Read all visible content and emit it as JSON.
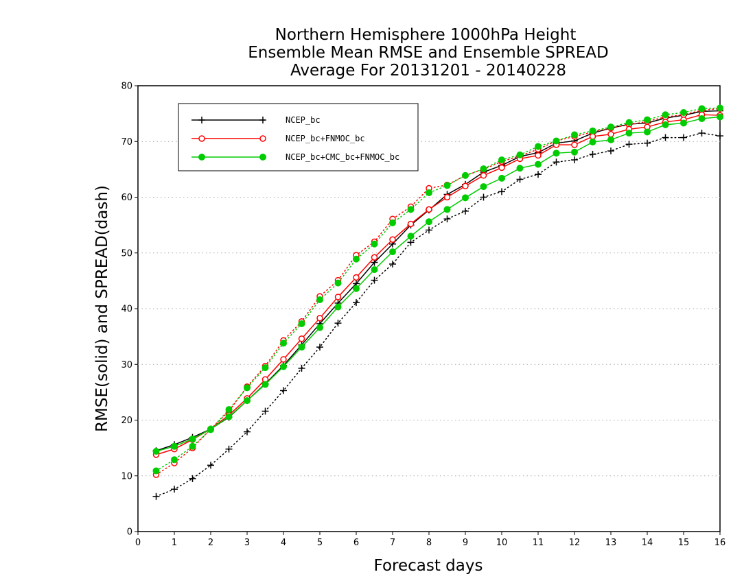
{
  "chart_data": {
    "type": "line",
    "title": [
      "Northern Hemisphere 1000hPa Height",
      "Ensemble Mean RMSE and Ensemble SPREAD",
      "Average For 20131201 - 20140228"
    ],
    "xlabel": "Forecast days",
    "ylabel": "RMSE(solid) and SPREAD(dash)",
    "xlim": [
      0,
      16
    ],
    "ylim": [
      0,
      80
    ],
    "xticks": [
      0,
      1,
      2,
      3,
      4,
      5,
      6,
      7,
      8,
      9,
      10,
      11,
      12,
      13,
      14,
      15,
      16
    ],
    "yticks": [
      0,
      10,
      20,
      30,
      40,
      50,
      60,
      70,
      80
    ],
    "grid": "horizontal dotted",
    "legend_position": "top-left",
    "x": [
      0.5,
      1,
      1.5,
      2,
      2.5,
      3,
      3.5,
      4,
      4.5,
      5,
      5.5,
      6,
      6.5,
      7,
      7.5,
      8,
      8.5,
      9,
      9.5,
      10,
      10.5,
      11,
      11.5,
      12,
      12.5,
      13,
      13.5,
      14,
      14.5,
      15,
      15.5,
      16
    ],
    "series": [
      {
        "name": "NCEP_bc",
        "color": "#000000",
        "marker": "plus",
        "rmse": [
          14.5,
          15.6,
          16.9,
          18.4,
          20.5,
          23.5,
          26.5,
          29.8,
          33.5,
          37.3,
          41.0,
          44.5,
          48.3,
          51.6,
          55.0,
          57.7,
          60.5,
          62.3,
          64.5,
          65.7,
          67.3,
          68.0,
          69.7,
          70.1,
          71.5,
          72.4,
          73.1,
          73.3,
          74.2,
          74.7,
          75.4,
          75.5
        ],
        "spread": [
          6.3,
          7.6,
          9.5,
          11.9,
          14.8,
          17.9,
          21.6,
          25.3,
          29.3,
          33.1,
          37.4,
          41.1,
          45.1,
          48.0,
          51.9,
          54.1,
          56.1,
          57.5,
          60.0,
          61.0,
          63.2,
          64.1,
          66.3,
          66.7,
          67.7,
          68.3,
          69.5,
          69.7,
          70.7,
          70.7,
          71.5,
          71.0
        ]
      },
      {
        "name": "NCEP_bc+FNMOC_bc",
        "color": "#ff0000",
        "marker": "open-circle",
        "rmse": [
          13.8,
          14.8,
          16.5,
          18.4,
          20.9,
          23.9,
          27.3,
          30.9,
          34.6,
          38.3,
          42.1,
          45.6,
          49.2,
          52.4,
          55.2,
          57.8,
          60.0,
          62.0,
          63.9,
          65.3,
          66.9,
          67.5,
          69.4,
          69.4,
          70.9,
          71.3,
          72.2,
          72.6,
          73.5,
          73.9,
          74.8,
          74.7
        ],
        "spread": [
          10.2,
          12.3,
          15.0,
          18.4,
          21.6,
          26.0,
          29.7,
          34.3,
          37.7,
          42.2,
          45.1,
          49.6,
          52.0,
          56.1,
          58.3,
          61.6,
          62.2,
          63.9,
          65.0,
          66.4,
          67.4,
          68.6,
          70.1,
          70.9,
          71.7,
          72.4,
          73.0,
          73.6,
          74.4,
          74.8,
          75.6,
          75.9
        ]
      },
      {
        "name": "NCEP_bc+CMC_bc+FNMOC_bc",
        "color": "#00cc00",
        "marker": "filled-circle",
        "rmse": [
          14.4,
          15.3,
          16.6,
          18.4,
          20.6,
          23.5,
          26.4,
          29.6,
          33.1,
          36.6,
          40.3,
          43.6,
          47.0,
          50.2,
          53.0,
          55.6,
          57.8,
          59.9,
          61.9,
          63.4,
          65.2,
          65.9,
          67.9,
          68.1,
          69.9,
          70.3,
          71.5,
          71.7,
          73.0,
          73.3,
          74.1,
          74.4
        ],
        "spread": [
          10.9,
          12.9,
          15.3,
          18.3,
          21.9,
          25.8,
          29.4,
          33.8,
          37.3,
          41.6,
          44.6,
          48.9,
          51.6,
          55.4,
          57.8,
          60.8,
          62.1,
          63.9,
          65.1,
          66.7,
          67.6,
          69.1,
          70.1,
          71.2,
          71.9,
          72.6,
          73.4,
          73.9,
          74.8,
          75.2,
          75.9,
          76.0
        ]
      }
    ]
  }
}
